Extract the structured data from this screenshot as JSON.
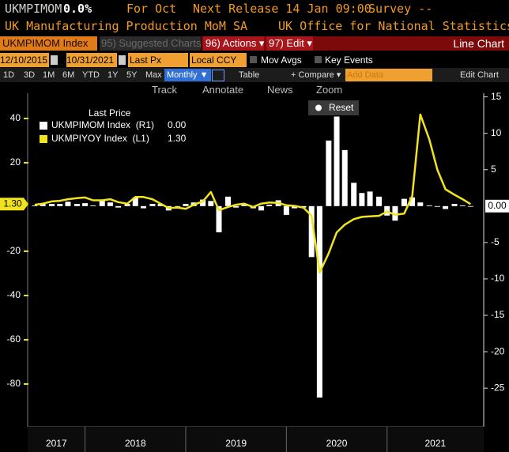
{
  "header": {
    "ticker": "UKMPIMOM",
    "change": "0.0%",
    "period": "For Oct",
    "next_release": "Next Release 14 Jan 09:00",
    "survey": "Survey --",
    "name": "UK Manufacturing Production MoM SA",
    "source": "UK Office for National Statistics"
  },
  "toolbar": {
    "security": "UKMPIMOM Index",
    "suggested": "95) Suggested Charts",
    "actions": "96) Actions ▾",
    "edit": "97) Edit ▾",
    "chart_kind": "Line Chart",
    "start_date": "12/10/2015",
    "end_date": "10/31/2021",
    "field": "Last Px",
    "currency": "Local CCY",
    "mov_avgs": "Mov Avgs",
    "key_events": "Key Events",
    "periods": [
      "1D",
      "3D",
      "1M",
      "6M",
      "YTD",
      "1Y",
      "5Y",
      "Max"
    ],
    "frequency": "Monthly ▼",
    "table": "Table",
    "compare": "+ Compare ▾",
    "add_data": "Add Data",
    "edit_chart": "Edit Chart",
    "tools": [
      "Track",
      "Annotate",
      "News",
      "Zoom"
    ],
    "reset": "Reset"
  },
  "chart_data": {
    "type": "combo",
    "legend_title": "Last Price",
    "x": [
      2017.5,
      2017.58,
      2017.67,
      2017.75,
      2017.83,
      2017.92,
      2018.0,
      2018.08,
      2018.17,
      2018.25,
      2018.33,
      2018.42,
      2018.5,
      2018.58,
      2018.67,
      2018.75,
      2018.83,
      2018.92,
      2019.0,
      2019.08,
      2019.17,
      2019.25,
      2019.33,
      2019.42,
      2019.5,
      2019.58,
      2019.67,
      2019.75,
      2019.83,
      2019.92,
      2020.0,
      2020.08,
      2020.17,
      2020.25,
      2020.33,
      2020.42,
      2020.5,
      2020.58,
      2020.67,
      2020.75,
      2020.83,
      2020.92,
      2021.0,
      2021.08,
      2021.17,
      2021.25,
      2021.33,
      2021.42,
      2021.5,
      2021.58,
      2021.67,
      2021.75,
      2021.83
    ],
    "xlim": [
      2017.43,
      2021.96
    ],
    "x_separators": [
      2018,
      2019,
      2020,
      2021
    ],
    "xtick_labels": [
      2017,
      2018,
      2019,
      2020,
      2021
    ],
    "series": [
      {
        "name": "UKMPIMOM Index  (R1)",
        "type": "bar",
        "axis": "y2",
        "color": "#ffffff",
        "last_label": "0.00",
        "values": [
          0.1,
          0.3,
          0.3,
          0.3,
          0.6,
          0.3,
          0.4,
          0.1,
          0.8,
          0.5,
          -0.2,
          0.3,
          1.2,
          -0.3,
          0.3,
          0.3,
          -0.6,
          -0.1,
          0.3,
          0.5,
          0.9,
          0.7,
          -3.6,
          1.3,
          -0.2,
          0.2,
          -0.3,
          -0.6,
          0.2,
          0.8,
          -1.2,
          -0.3,
          -0.2,
          -7.0,
          -26.3,
          9.0,
          12.3,
          7.7,
          3.2,
          1.8,
          2.0,
          1.3,
          -1.3,
          -2.0,
          1.0,
          1.2,
          0.5,
          0.1,
          -0.1,
          -0.4,
          0.3,
          0.1,
          0.0
        ]
      },
      {
        "name": "UKMPIYOY Index  (L1)",
        "type": "line",
        "color": "#f2e41c",
        "last_label": "1.30",
        "values": [
          1.0,
          1.5,
          2.5,
          2.8,
          3.5,
          4.0,
          4.3,
          3.0,
          3.0,
          3.5,
          2.2,
          1.5,
          4.5,
          4.5,
          3.5,
          1.5,
          -0.5,
          -0.3,
          -0.8,
          1.0,
          2.5,
          6.8,
          -1.5,
          0.0,
          1.0,
          1.5,
          0.0,
          1.5,
          2.0,
          1.8,
          0.8,
          0.5,
          -0.3,
          -4.0,
          -29.6,
          -21.0,
          -11.5,
          -8.0,
          -5.5,
          -4.5,
          -4.2,
          -4.0,
          -2.1,
          -3.5,
          -3.0,
          5.0,
          41.8,
          30.5,
          16.8,
          8.0,
          5.5,
          3.5,
          1.3
        ]
      }
    ],
    "ylim": [
      -99.3,
      51.4
    ],
    "yticks": [
      40,
      20,
      -20,
      -40,
      -60,
      -80
    ],
    "y2lim": [
      -30.3,
      15.5
    ],
    "y2ticks": [
      15,
      10,
      5,
      -5,
      -10,
      -15,
      -20,
      -25
    ],
    "grid": false
  }
}
